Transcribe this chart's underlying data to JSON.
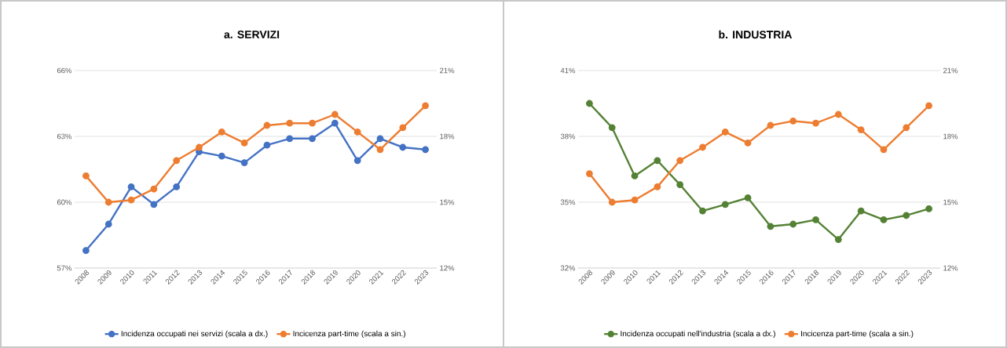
{
  "chart_data": [
    {
      "type": "line",
      "title": "a. SERVIZI",
      "categories": [
        "2008",
        "2009",
        "2010",
        "2011",
        "2012",
        "2013",
        "2014",
        "2015",
        "2016",
        "2017",
        "2018",
        "2019",
        "2020",
        "2021",
        "2022",
        "2023"
      ],
      "series": [
        {
          "name": "Incidenza occupati nei servizi (scala a dx.)",
          "color": "#4472c4",
          "values": [
            57.8,
            59.0,
            60.7,
            59.9,
            60.7,
            62.3,
            62.1,
            61.8,
            62.6,
            62.9,
            62.9,
            63.6,
            61.9,
            62.9,
            62.5,
            62.4
          ]
        },
        {
          "name": "Incicenza part-time (scala a sin.)",
          "color": "#ed7d31",
          "axis": "y2",
          "values": [
            16.2,
            15.0,
            15.1,
            15.6,
            16.9,
            17.5,
            18.2,
            17.7,
            18.5,
            18.6,
            18.6,
            19.0,
            18.2,
            17.4,
            18.4,
            19.4
          ]
        }
      ],
      "ylim": [
        57,
        66
      ],
      "yticks": [
        {
          "value": 57,
          "label": "57%"
        },
        {
          "value": 60,
          "label": "60%"
        },
        {
          "value": 63,
          "label": "63%"
        },
        {
          "value": 66,
          "label": "66%"
        }
      ],
      "y2lim": [
        12,
        21
      ],
      "y2ticks": [
        {
          "value": 12,
          "label": "12%"
        },
        {
          "value": 15,
          "label": "15%"
        },
        {
          "value": 18,
          "label": "18%"
        },
        {
          "value": 21,
          "label": "21%"
        }
      ],
      "grid": "y",
      "legend": "bottom",
      "marker": "circle",
      "line_style": "solid"
    },
    {
      "type": "line",
      "title": "b. INDUSTRIA",
      "categories": [
        "2008",
        "2009",
        "2010",
        "2011",
        "2012",
        "2013",
        "2014",
        "2015",
        "2016",
        "2017",
        "2018",
        "2019",
        "2020",
        "2021",
        "2022",
        "2023"
      ],
      "series": [
        {
          "name": "Incidenza occupati nell'industria (scala a dx.)",
          "color": "#548235",
          "values": [
            39.5,
            38.4,
            36.2,
            36.9,
            35.8,
            34.6,
            34.9,
            35.2,
            33.9,
            34.0,
            34.2,
            33.3,
            34.6,
            34.2,
            34.4,
            34.7
          ]
        },
        {
          "name": "Incicenza part-time (scala a sin.)",
          "color": "#ed7d31",
          "axis": "y2",
          "values": [
            16.3,
            15.0,
            15.1,
            15.7,
            16.9,
            17.5,
            18.2,
            17.7,
            18.5,
            18.7,
            18.6,
            19.0,
            18.3,
            17.4,
            18.4,
            19.4
          ]
        }
      ],
      "ylim": [
        32,
        41
      ],
      "yticks": [
        {
          "value": 32,
          "label": "32%"
        },
        {
          "value": 35,
          "label": "35%"
        },
        {
          "value": 38,
          "label": "38%"
        },
        {
          "value": 41,
          "label": "41%"
        }
      ],
      "y2lim": [
        12,
        21
      ],
      "y2ticks": [
        {
          "value": 12,
          "label": "12%"
        },
        {
          "value": 15,
          "label": "15%"
        },
        {
          "value": 18,
          "label": "18%"
        },
        {
          "value": 21,
          "label": "21%"
        }
      ],
      "grid": "y",
      "legend": "bottom",
      "marker": "circle",
      "line_style": "solid"
    }
  ]
}
